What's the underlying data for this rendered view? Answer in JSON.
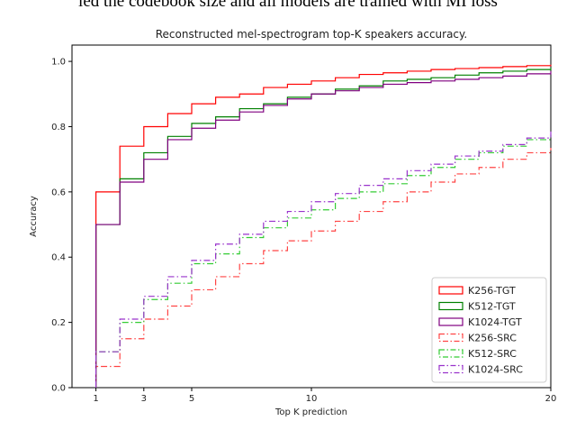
{
  "page": {
    "top_text": "ied the codebook size and all models are trained with MI loss"
  },
  "chart_data": {
    "type": "line",
    "step": true,
    "title": "Reconstructed mel-spectrogram top-K speakers accuracy.",
    "xlabel": "Top K prediction",
    "ylabel": "Accuracy",
    "xlim": [
      0,
      20
    ],
    "ylim": [
      0,
      1.05
    ],
    "x_ticks": [
      1,
      3,
      5,
      10,
      20
    ],
    "y_ticks": [
      "0.0",
      "0.2",
      "0.4",
      "0.6",
      "0.8",
      "1.0"
    ],
    "grid": false,
    "legend_position": "lower-right",
    "x": [
      1,
      2,
      3,
      4,
      5,
      6,
      7,
      8,
      9,
      10,
      11,
      12,
      13,
      14,
      15,
      16,
      17,
      18,
      19,
      20
    ],
    "series": [
      {
        "name": "K256-TGT",
        "color": "#ff0000",
        "dash": "solid",
        "values": [
          0.6,
          0.74,
          0.8,
          0.84,
          0.87,
          0.89,
          0.9,
          0.92,
          0.93,
          0.94,
          0.95,
          0.96,
          0.965,
          0.97,
          0.975,
          0.978,
          0.981,
          0.984,
          0.987,
          0.99
        ]
      },
      {
        "name": "K512-TGT",
        "color": "#008000",
        "dash": "solid",
        "values": [
          0.5,
          0.64,
          0.72,
          0.77,
          0.81,
          0.83,
          0.855,
          0.87,
          0.89,
          0.9,
          0.915,
          0.925,
          0.94,
          0.945,
          0.95,
          0.958,
          0.965,
          0.97,
          0.975,
          0.98
        ]
      },
      {
        "name": "K1024-TGT",
        "color": "#800080",
        "dash": "solid",
        "values": [
          0.5,
          0.63,
          0.7,
          0.76,
          0.795,
          0.82,
          0.845,
          0.865,
          0.885,
          0.9,
          0.91,
          0.92,
          0.93,
          0.935,
          0.94,
          0.945,
          0.95,
          0.955,
          0.962,
          0.97
        ]
      },
      {
        "name": "K256-SRC",
        "color": "#ff4444",
        "dash": "dashdot",
        "values": [
          0.065,
          0.15,
          0.21,
          0.25,
          0.3,
          0.34,
          0.38,
          0.42,
          0.45,
          0.48,
          0.51,
          0.54,
          0.57,
          0.6,
          0.63,
          0.655,
          0.675,
          0.7,
          0.72,
          0.735
        ]
      },
      {
        "name": "K512-SRC",
        "color": "#33cc33",
        "dash": "dashdot",
        "values": [
          0.11,
          0.2,
          0.27,
          0.32,
          0.38,
          0.41,
          0.46,
          0.49,
          0.52,
          0.545,
          0.58,
          0.6,
          0.625,
          0.65,
          0.675,
          0.7,
          0.72,
          0.74,
          0.76,
          0.775
        ]
      },
      {
        "name": "K1024-SRC",
        "color": "#9933cc",
        "dash": "dashdot",
        "values": [
          0.11,
          0.21,
          0.28,
          0.34,
          0.39,
          0.44,
          0.47,
          0.51,
          0.54,
          0.57,
          0.595,
          0.62,
          0.64,
          0.665,
          0.685,
          0.71,
          0.725,
          0.745,
          0.765,
          0.785
        ]
      }
    ]
  }
}
